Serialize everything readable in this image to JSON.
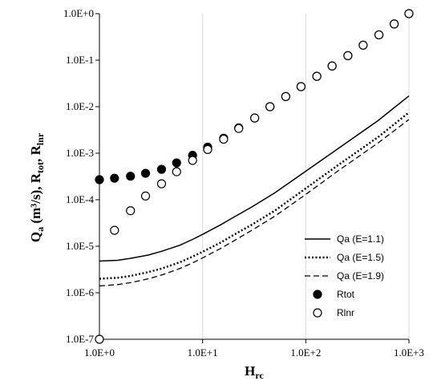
{
  "chart_data": {
    "type": "line",
    "title": "",
    "x_scale": "log",
    "y_scale": "log",
    "xlim": [
      1,
      1000
    ],
    "ylim": [
      1e-07,
      1
    ],
    "grid": {
      "x": "vertical",
      "y": "none"
    },
    "legend_position": "bottom-right",
    "xlabel": {
      "main": "H",
      "sub": "rc"
    },
    "ylabel": {
      "parts": [
        {
          "t": "Q",
          "sub": false
        },
        {
          "t": "a",
          "sub": true
        },
        {
          "t": " (m³/s), R",
          "sub": false
        },
        {
          "t": "tot",
          "sub": true
        },
        {
          "t": ", R",
          "sub": false
        },
        {
          "t": "lnr",
          "sub": true
        }
      ]
    },
    "x_ticks": [
      {
        "value": 1,
        "label": "1.0E+0"
      },
      {
        "value": 10,
        "label": "1.0E+1"
      },
      {
        "value": 100,
        "label": "1.0E+2"
      },
      {
        "value": 1000,
        "label": "1.0E+3"
      }
    ],
    "y_ticks": [
      {
        "value": 1,
        "label": "1.0E+0"
      },
      {
        "value": 0.1,
        "label": "1.0E-1"
      },
      {
        "value": 0.01,
        "label": "1.0E-2"
      },
      {
        "value": 0.001,
        "label": "1.0E-3"
      },
      {
        "value": 0.0001,
        "label": "1.0E-4"
      },
      {
        "value": 1e-05,
        "label": "1.0E-5"
      },
      {
        "value": 1e-06,
        "label": "1.0E-6"
      },
      {
        "value": 1e-07,
        "label": "1.0E-7"
      }
    ],
    "series": [
      {
        "name": "Qa (E=1.1)",
        "style": "solid",
        "color": "#000000",
        "x": [
          1,
          1.5,
          2,
          3,
          4,
          6,
          8,
          10,
          15,
          20,
          30,
          50,
          100,
          200,
          500,
          1000
        ],
        "y": [
          4.8e-06,
          5e-06,
          5.5e-06,
          6.5e-06,
          7.8e-06,
          1.05e-05,
          1.4e-05,
          1.8e-05,
          2.9e-05,
          4.2e-05,
          7e-05,
          0.00014,
          0.00041,
          0.0012,
          0.005,
          0.017
        ]
      },
      {
        "name": "Qa (E=1.5)",
        "style": "dotted",
        "color": "#000000",
        "x": [
          1,
          1.5,
          2,
          3,
          4,
          6,
          8,
          10,
          15,
          20,
          30,
          50,
          100,
          200,
          500,
          1000
        ],
        "y": [
          2e-06,
          2.1e-06,
          2.3e-06,
          2.8e-06,
          3.3e-06,
          4.5e-06,
          6e-06,
          7.6e-06,
          1.2e-05,
          1.75e-05,
          2.9e-05,
          5.8e-05,
          0.000175,
          0.00053,
          0.0022,
          0.0075
        ]
      },
      {
        "name": "Qa (E=1.9)",
        "style": "dashed",
        "color": "#000000",
        "x": [
          1,
          1.5,
          2,
          3,
          4,
          6,
          8,
          10,
          15,
          20,
          30,
          50,
          100,
          200,
          500,
          1000
        ],
        "y": [
          1.4e-06,
          1.5e-06,
          1.65e-06,
          2e-06,
          2.4e-06,
          3.3e-06,
          4.4e-06,
          5.6e-06,
          9e-06,
          1.3e-05,
          2.2e-05,
          4.4e-05,
          0.00013,
          0.0004,
          0.00165,
          0.0053
        ]
      },
      {
        "name": "Rtot",
        "style": "marker-filled",
        "color": "#000000",
        "x": [
          1,
          1.4,
          2,
          2.8,
          4,
          5.6,
          8,
          11.2,
          16,
          22.4,
          32,
          45,
          64,
          90,
          128,
          180,
          256,
          360,
          512,
          720,
          1000
        ],
        "y": [
          0.00027,
          0.00029,
          0.00032,
          0.00037,
          0.00045,
          0.00062,
          0.0009,
          0.00135,
          0.0021,
          0.0035,
          0.0057,
          0.01,
          0.0165,
          0.027,
          0.045,
          0.075,
          0.125,
          0.21,
          0.35,
          0.6,
          1.0
        ]
      },
      {
        "name": "Rlnr",
        "style": "marker-open",
        "color": "#000000",
        "x": [
          1,
          1.4,
          2,
          2.8,
          4,
          5.6,
          8,
          11.2,
          16,
          22.4,
          32,
          45,
          64,
          90,
          128,
          180,
          256,
          360,
          512,
          720,
          1000
        ],
        "y": [
          1e-07,
          2.2e-05,
          5.8e-05,
          0.00012,
          0.00022,
          0.0004,
          0.0007,
          0.0012,
          0.002,
          0.0034,
          0.0057,
          0.01,
          0.0165,
          0.027,
          0.045,
          0.075,
          0.125,
          0.21,
          0.35,
          0.6,
          1.0
        ]
      }
    ]
  }
}
